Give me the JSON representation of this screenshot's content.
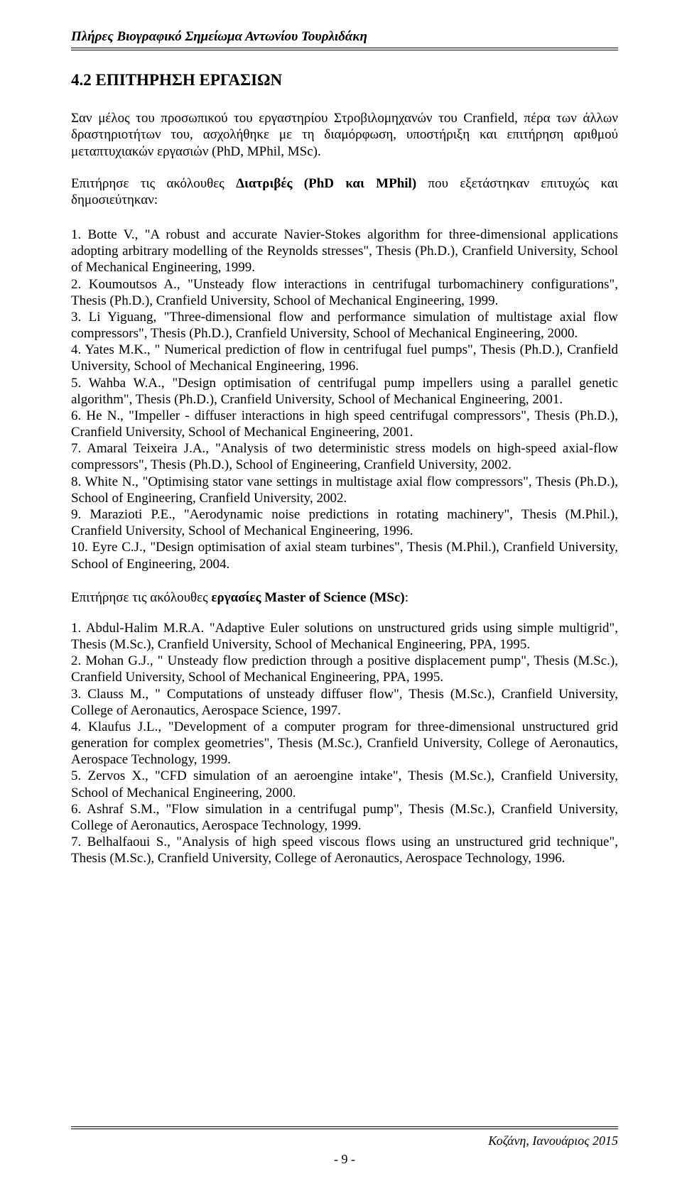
{
  "header": {
    "title_prefix": "Πλήρες Βιογραφικό Σημείωμα ",
    "title_name": "Αντωνίου Τουρλιδάκη"
  },
  "section": {
    "heading": "4.2   ΕΠΙΤΗΡΗΣΗ ΕΡΓΑΣΙΩΝ"
  },
  "intro": {
    "para1": "Σαν μέλος του προσωπικού του εργαστηρίου Στροβιλομηχανών του Cranfield, πέρα των άλλων δραστηριοτήτων του, ασχολήθηκε με τη διαμόρφωση, υποστήριξη και επιτήρηση αριθμού μεταπτυχιακών εργασιών (PhD, MPhil, MSc).",
    "para2_pre": "Επιτήρησε τις ακόλουθες ",
    "para2_bold": "Διατριβές (PhD και    MPhil)",
    "para2_post": " που εξετάστηκαν επιτυχώς και δημοσιεύτηκαν:"
  },
  "phd_items": [
    "1.       Botte V., \"A robust and accurate Navier-Stokes algorithm for three-dimensional applications adopting arbitrary modelling of the Reynolds stresses\", Thesis (Ph.D.), Cranfield University, School of Mechanical Engineering, 1999.",
    "2.       Koumoutsos A., \"Unsteady flow interactions in centrifugal turbomachinery configurations\", Thesis (Ph.D.), Cranfield University, School of Mechanical Engineering, 1999.",
    "3.       Li Yiguang, \"Three-dimensional flow and performance simulation of multistage axial flow compressors\", Thesis (Ph.D.), Cranfield University, School of Mechanical Engineering, 2000.",
    "4.       Yates M.K., \" Numerical prediction of flow in centrifugal fuel pumps\", Thesis (Ph.D.), Cranfield University, School of Mechanical Engineering, 1996.",
    "5.       Wahba W.A., \"Design optimisation of centrifugal pump impellers using a parallel genetic algorithm\", Thesis (Ph.D.), Cranfield University, School of Mechanical Engineering, 2001.",
    "6.       He N., \"Impeller - diffuser interactions in high speed centrifugal compressors\", Thesis (Ph.D.), Cranfield University, School of Mechanical Engineering, 2001.",
    "7.       Amaral Teixeira J.A., \"Analysis of two deterministic stress models on high-speed axial-flow compressors\", Thesis (Ph.D.), School of Engineering, Cranfield University, 2002.",
    "8.       White N., \"Optimising stator vane settings in multistage axial flow compressors\", Thesis (Ph.D.), School of Engineering, Cranfield University, 2002.",
    "9.       Marazioti P.E., \"Aerodynamic noise predictions in rotating machinery\", Thesis (M.Phil.), Cranfield University, School of Mechanical Engineering, 1996.",
    "10.     Eyre C.J., \"Design optimisation of axial steam turbines\", Thesis (M.Phil.), Cranfield University, School of Engineering, 2004."
  ],
  "msc_heading": {
    "pre": "Επιτήρησε τις ακόλουθες ",
    "bold": "εργασίες Master of Science (MSc)",
    "post": ":"
  },
  "msc_items": [
    "1.       Abdul-Halim M.R.A. \"Adaptive Euler solutions on unstructured grids using simple multigrid\", Thesis (M.Sc.), Cranfield University, School of Mechanical Engineering, PPA, 1995.",
    "2.       Mohan G.J., \" Unsteady flow prediction through a positive displacement pump\", Thesis (M.Sc.), Cranfield University, School of Mechanical Engineering, PPA, 1995.",
    "3.       Clauss M., \" Computations of unsteady diffuser flow\", Thesis (M.Sc.), Cranfield University, College of Aeronautics, Aerospace Science, 1997.",
    "4.       Klaufus J.L., \"Development of a computer program for three-dimensional unstructured grid generation for complex geometries\", Thesis (M.Sc.), Cranfield University, College of Aeronautics, Aerospace Technology, 1999.",
    "5.       Zervos X., \"CFD simulation of an aeroengine intake\", Thesis (M.Sc.), Cranfield University, School of Mechanical Engineering, 2000.",
    "6.       Ashraf S.M., \"Flow simulation in a centrifugal pump\", Thesis (M.Sc.), Cranfield University, College of Aeronautics, Aerospace Technology, 1999.",
    "7.       Belhalfaoui S., \"Analysis of high speed viscous flows using an unstructured grid technique\", Thesis (M.Sc.), Cranfield University, College of Aeronautics, Aerospace Technology, 1996."
  ],
  "footer": {
    "right_text": "Κοζάνη, Ιανουάριος 2015",
    "page_number": "- 9 -"
  },
  "colors": {
    "text": "#000000",
    "background": "#ffffff",
    "rule": "#000000"
  }
}
